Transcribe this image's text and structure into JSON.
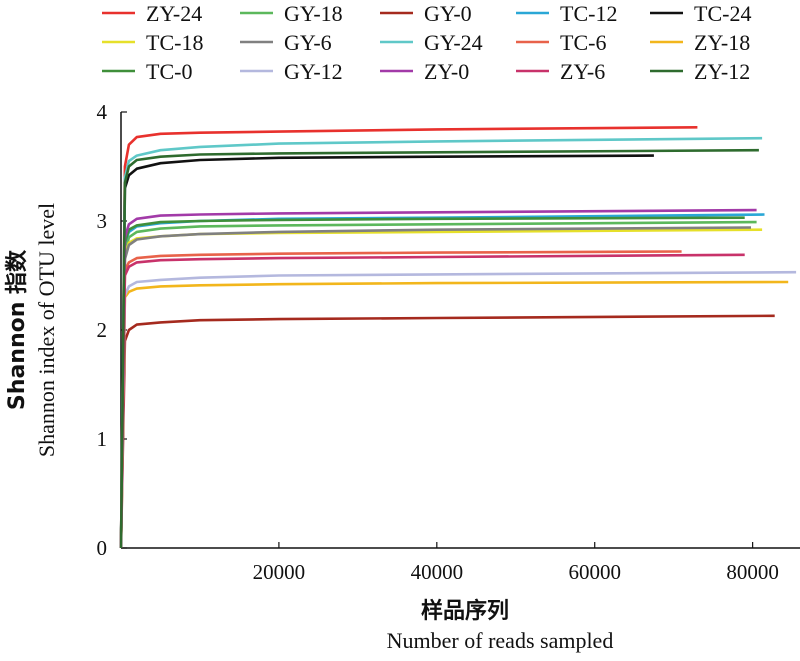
{
  "chart_data": {
    "type": "line",
    "xlabel_zh": "样品序列",
    "xlabel": "Number of reads sampled",
    "ylabel_zh": "Shannon 指数",
    "ylabel": "Shannon index of OTU level",
    "xlim": [
      0,
      86000
    ],
    "ylim": [
      0,
      4
    ],
    "x_ticks": [
      "20000",
      "40000",
      "60000",
      "80000"
    ],
    "x_tick_values": [
      20000,
      40000,
      60000,
      80000
    ],
    "y_ticks": [
      "0",
      "1",
      "2",
      "3",
      "4"
    ],
    "y_tick_values": [
      0,
      1,
      2,
      3,
      4
    ],
    "legend_placement": "top",
    "series": [
      {
        "name": "ZY-24",
        "color": "#e8312d",
        "x": [
          0,
          500,
          1000,
          2000,
          5000,
          10000,
          20000,
          40000,
          73000
        ],
        "y": [
          0,
          3.5,
          3.7,
          3.77,
          3.8,
          3.81,
          3.82,
          3.84,
          3.86
        ]
      },
      {
        "name": "GY-18",
        "color": "#5cb85c",
        "x": [
          0,
          500,
          1000,
          2000,
          5000,
          10000,
          20000,
          40000,
          80500
        ],
        "y": [
          0,
          2.7,
          2.85,
          2.9,
          2.93,
          2.95,
          2.96,
          2.97,
          2.99
        ]
      },
      {
        "name": "GY-0",
        "color": "#a52a1e",
        "x": [
          0,
          500,
          1000,
          2000,
          5000,
          10000,
          20000,
          40000,
          82800
        ],
        "y": [
          0,
          1.9,
          2.0,
          2.05,
          2.07,
          2.09,
          2.1,
          2.11,
          2.13
        ]
      },
      {
        "name": "TC-12",
        "color": "#2aa7d6",
        "x": [
          0,
          500,
          1000,
          2000,
          5000,
          10000,
          20000,
          40000,
          81500
        ],
        "y": [
          0,
          2.8,
          2.9,
          2.95,
          2.98,
          3.0,
          3.02,
          3.03,
          3.06
        ]
      },
      {
        "name": "TC-24",
        "color": "#111111",
        "x": [
          0,
          500,
          1000,
          2000,
          5000,
          10000,
          20000,
          40000,
          67500
        ],
        "y": [
          0,
          3.3,
          3.42,
          3.48,
          3.53,
          3.56,
          3.58,
          3.59,
          3.6
        ]
      },
      {
        "name": "TC-18",
        "color": "#e6e02a",
        "x": [
          0,
          500,
          1000,
          2000,
          5000,
          10000,
          20000,
          40000,
          81200
        ],
        "y": [
          0,
          2.7,
          2.8,
          2.84,
          2.86,
          2.88,
          2.89,
          2.9,
          2.92
        ]
      },
      {
        "name": "GY-6",
        "color": "#808080",
        "x": [
          0,
          500,
          1000,
          2000,
          5000,
          10000,
          20000,
          40000,
          79800
        ],
        "y": [
          0,
          2.65,
          2.78,
          2.83,
          2.86,
          2.88,
          2.9,
          2.92,
          2.94
        ]
      },
      {
        "name": "GY-24",
        "color": "#5fc8c8",
        "x": [
          0,
          500,
          1000,
          2000,
          5000,
          10000,
          20000,
          40000,
          81200
        ],
        "y": [
          0,
          3.4,
          3.55,
          3.6,
          3.65,
          3.68,
          3.71,
          3.73,
          3.76
        ]
      },
      {
        "name": "TC-6",
        "color": "#e8624a",
        "x": [
          0,
          500,
          1000,
          2000,
          5000,
          10000,
          20000,
          40000,
          71000
        ],
        "y": [
          0,
          2.55,
          2.62,
          2.66,
          2.68,
          2.69,
          2.7,
          2.71,
          2.72
        ]
      },
      {
        "name": "ZY-18",
        "color": "#f2b61c",
        "x": [
          0,
          500,
          1000,
          2000,
          5000,
          10000,
          20000,
          40000,
          84500
        ],
        "y": [
          0,
          2.3,
          2.35,
          2.38,
          2.4,
          2.41,
          2.42,
          2.43,
          2.44
        ]
      },
      {
        "name": "TC-0",
        "color": "#3f8f3a",
        "x": [
          0,
          500,
          1000,
          2000,
          5000,
          10000,
          20000,
          40000,
          79000
        ],
        "y": [
          0,
          2.8,
          2.92,
          2.96,
          2.99,
          3.0,
          3.01,
          3.02,
          3.03
        ]
      },
      {
        "name": "GY-12",
        "color": "#b4b8de",
        "x": [
          0,
          500,
          1000,
          2000,
          5000,
          10000,
          20000,
          40000,
          85500
        ],
        "y": [
          0,
          2.32,
          2.4,
          2.44,
          2.46,
          2.48,
          2.5,
          2.51,
          2.53
        ]
      },
      {
        "name": "ZY-0",
        "color": "#a23aa8",
        "x": [
          0,
          500,
          1000,
          2000,
          5000,
          10000,
          20000,
          40000,
          80500
        ],
        "y": [
          0,
          2.85,
          2.97,
          3.02,
          3.05,
          3.06,
          3.07,
          3.08,
          3.1
        ]
      },
      {
        "name": "ZY-6",
        "color": "#c8326a",
        "x": [
          0,
          500,
          1000,
          2000,
          5000,
          10000,
          20000,
          40000,
          79000
        ],
        "y": [
          0,
          2.5,
          2.58,
          2.62,
          2.64,
          2.65,
          2.66,
          2.67,
          2.69
        ]
      },
      {
        "name": "ZY-12",
        "color": "#2e6b2e",
        "x": [
          0,
          500,
          1000,
          2000,
          5000,
          10000,
          20000,
          40000,
          80800
        ],
        "y": [
          0,
          3.35,
          3.5,
          3.56,
          3.59,
          3.61,
          3.62,
          3.63,
          3.65
        ]
      }
    ]
  }
}
